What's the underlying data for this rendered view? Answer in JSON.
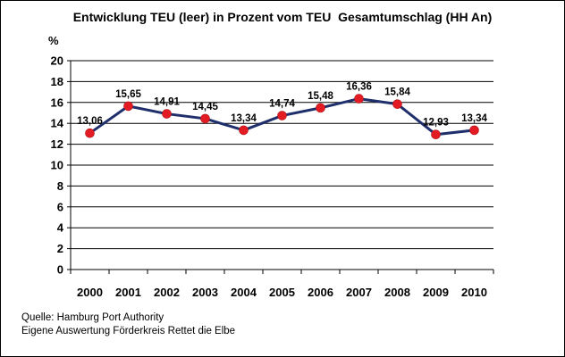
{
  "chart_data": {
    "type": "line",
    "title": "Entwicklung TEU (leer) in Prozent vom TEU  Gesamtumschlag (HH An)",
    "ylabel": "%",
    "xlabel": "",
    "x": [
      "2000",
      "2001",
      "2002",
      "2003",
      "2004",
      "2005",
      "2006",
      "2007",
      "2008",
      "2009",
      "2010"
    ],
    "series": [
      {
        "values": [
          13.06,
          15.65,
          14.91,
          14.45,
          13.34,
          14.74,
          15.48,
          16.36,
          15.84,
          12.93,
          13.34
        ],
        "labels": [
          "13,06",
          "15,65",
          "14,91",
          "14,45",
          "13,34",
          "14,74",
          "15,48",
          "16,36",
          "15,84",
          "12,93",
          "13,34"
        ]
      }
    ],
    "ylim": [
      0,
      20
    ],
    "yticks": [
      "0",
      "2",
      "4",
      "6",
      "8",
      "10",
      "12",
      "14",
      "16",
      "18",
      "20"
    ],
    "grid": true,
    "legend": "none",
    "colors": {
      "line": "#1f2f6b",
      "marker": "#e31b23",
      "grid": "#000000"
    }
  },
  "source": {
    "line1": "Quelle: Hamburg Port Authority",
    "line2": "Eigene Auswertung Förderkreis Rettet die Elbe"
  }
}
